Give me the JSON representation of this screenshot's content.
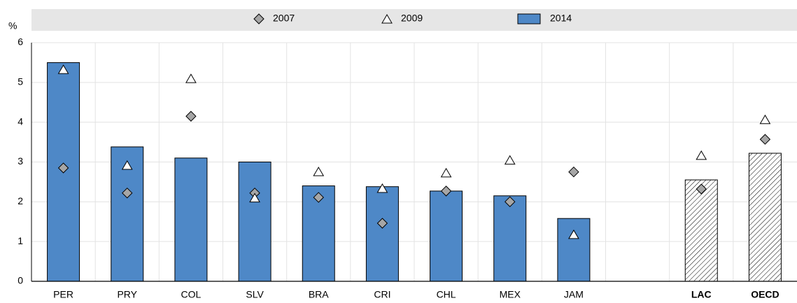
{
  "chart_data": {
    "type": "bar",
    "y_unit": "%",
    "categories": [
      "PER",
      "PRY",
      "COL",
      "SLV",
      "BRA",
      "CRI",
      "CHL",
      "MEX",
      "JAM",
      null,
      "LAC",
      "OECD"
    ],
    "hatched": [
      false,
      false,
      false,
      false,
      false,
      false,
      false,
      false,
      false,
      false,
      true,
      true
    ],
    "series": [
      {
        "name": "2007",
        "marker": "diamond",
        "color": "#a6a6a6",
        "values": [
          2.85,
          2.22,
          4.15,
          2.22,
          2.11,
          1.46,
          2.27,
          2.0,
          2.75,
          null,
          2.32,
          3.57
        ]
      },
      {
        "name": "2009",
        "marker": "triangle",
        "color": "#ffffff",
        "values": [
          5.33,
          2.92,
          5.1,
          2.1,
          2.76,
          2.34,
          2.73,
          3.05,
          1.18,
          null,
          3.17,
          4.07
        ]
      },
      {
        "name": "2014",
        "marker": "bar",
        "color": "#4e88c7",
        "values": [
          5.5,
          3.38,
          3.1,
          3.0,
          2.4,
          2.38,
          2.27,
          2.15,
          1.58,
          null,
          2.55,
          3.22
        ]
      }
    ],
    "ylim": [
      0,
      6
    ],
    "yticks": [
      0,
      1,
      2,
      3,
      4,
      5,
      6
    ],
    "grid": true
  }
}
